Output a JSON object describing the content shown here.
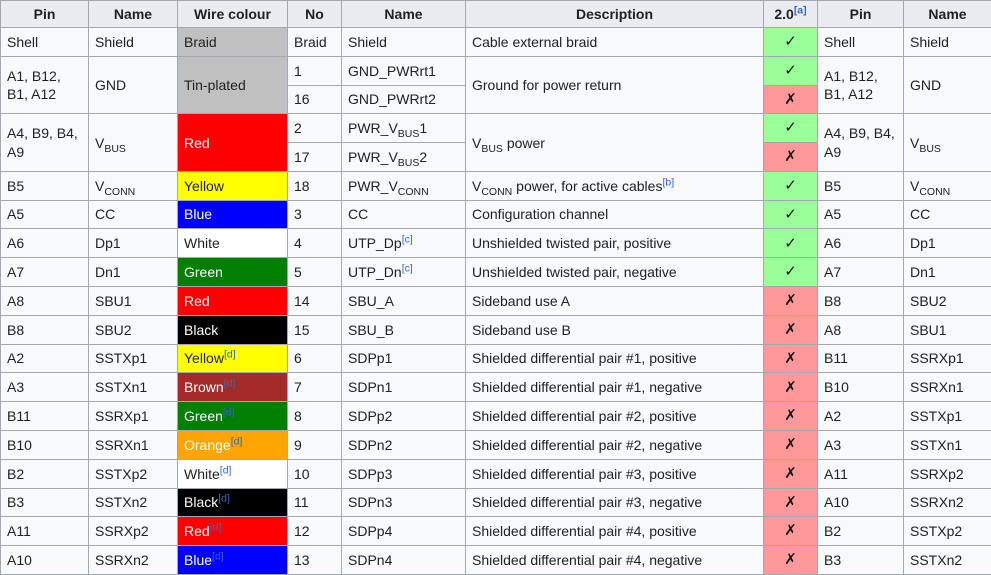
{
  "table": {
    "columns": [
      {
        "label": "Pin"
      },
      {
        "label": "Name"
      },
      {
        "label": "Wire colour"
      },
      {
        "label": "No"
      },
      {
        "label": "Name"
      },
      {
        "label": "Description"
      },
      {
        "label": "2.0",
        "sup": "[a]"
      },
      {
        "label": "Pin"
      },
      {
        "label": "Name"
      }
    ],
    "glyphs": {
      "yes": "✓",
      "no": "✗"
    },
    "colors": {
      "yes_bg": "#99ff99",
      "no_bg": "#ff9999",
      "silver": "#c0c0c0",
      "red": "#ff0000",
      "yellow": "#ffff00",
      "blue": "#0000ff",
      "white": "#ffffff",
      "green": "#008000",
      "black": "#000000",
      "brown": "#a52a2a",
      "orange": "#ffa500",
      "link": "#3366cc",
      "header_bg": "#eaecf0",
      "cell_bg": "#f8f9fa",
      "border": "#a2a9b1"
    },
    "rows": [
      {
        "cells": [
          {
            "kind": "pin",
            "text": "Shell"
          },
          {
            "kind": "name",
            "text": "Shield"
          },
          {
            "kind": "wire",
            "text": "Braid",
            "bg": "silver"
          },
          {
            "kind": "no",
            "text": "Braid"
          },
          {
            "kind": "signal",
            "text": "Shield"
          },
          {
            "kind": "desc",
            "text": "Cable external braid"
          },
          {
            "kind": "usb2",
            "mark": "yes"
          },
          {
            "kind": "pin2",
            "text": "Shell"
          },
          {
            "kind": "name2",
            "text": "Shield"
          }
        ]
      },
      {
        "cells": [
          {
            "kind": "pin",
            "text": "A1, B12, B1, A12",
            "rowspan": 2
          },
          {
            "kind": "name",
            "text": "GND",
            "rowspan": 2
          },
          {
            "kind": "wire",
            "text": "Tin-plated",
            "bg": "silver",
            "rowspan": 2
          },
          {
            "kind": "no",
            "text": "1"
          },
          {
            "kind": "signal",
            "text": "GND_PWRrt1"
          },
          {
            "kind": "desc",
            "text": "Ground for power return",
            "rowspan": 2
          },
          {
            "kind": "usb2",
            "mark": "yes"
          },
          {
            "kind": "pin2",
            "text": "A1, B12, B1, A12",
            "rowspan": 2
          },
          {
            "kind": "name2",
            "text": "GND",
            "rowspan": 2
          }
        ]
      },
      {
        "cells": [
          {
            "kind": "no",
            "text": "16"
          },
          {
            "kind": "signal",
            "text": "GND_PWRrt2"
          },
          {
            "kind": "usb2",
            "mark": "no"
          }
        ]
      },
      {
        "cells": [
          {
            "kind": "pin",
            "text": "A4, B9, B4, A9",
            "rowspan": 2
          },
          {
            "kind": "name",
            "parts": [
              {
                "t": "V"
              },
              {
                "sub": "BUS"
              }
            ],
            "rowspan": 2
          },
          {
            "kind": "wire",
            "text": "Red",
            "bg": "red",
            "fg": "#ffffff",
            "rowspan": 2
          },
          {
            "kind": "no",
            "text": "2"
          },
          {
            "kind": "signal",
            "parts": [
              {
                "t": "PWR_V"
              },
              {
                "sub": "BUS"
              },
              {
                "t": "1"
              }
            ]
          },
          {
            "kind": "desc",
            "parts": [
              {
                "t": "V"
              },
              {
                "sub": "BUS"
              },
              {
                "t": " power"
              }
            ],
            "rowspan": 2
          },
          {
            "kind": "usb2",
            "mark": "yes"
          },
          {
            "kind": "pin2",
            "text": "A4, B9, B4, A9",
            "rowspan": 2
          },
          {
            "kind": "name2",
            "parts": [
              {
                "t": "V"
              },
              {
                "sub": "BUS"
              }
            ],
            "rowspan": 2
          }
        ]
      },
      {
        "cells": [
          {
            "kind": "no",
            "text": "17"
          },
          {
            "kind": "signal",
            "parts": [
              {
                "t": "PWR_V"
              },
              {
                "sub": "BUS"
              },
              {
                "t": "2"
              }
            ]
          },
          {
            "kind": "usb2",
            "mark": "no"
          }
        ]
      },
      {
        "cells": [
          {
            "kind": "pin",
            "text": "B5"
          },
          {
            "kind": "name",
            "parts": [
              {
                "t": "V"
              },
              {
                "sub": "CONN"
              }
            ]
          },
          {
            "kind": "wire",
            "text": "Yellow",
            "bg": "yellow"
          },
          {
            "kind": "no",
            "text": "18"
          },
          {
            "kind": "signal",
            "parts": [
              {
                "t": "PWR_V"
              },
              {
                "sub": "CONN"
              }
            ]
          },
          {
            "kind": "desc",
            "parts": [
              {
                "t": "V"
              },
              {
                "sub": "CONN"
              },
              {
                "t": " power, for active cables"
              }
            ],
            "sup": "[b]"
          },
          {
            "kind": "usb2",
            "mark": "yes"
          },
          {
            "kind": "pin2",
            "text": "B5"
          },
          {
            "kind": "name2",
            "parts": [
              {
                "t": "V"
              },
              {
                "sub": "CONN"
              }
            ]
          }
        ]
      },
      {
        "cells": [
          {
            "kind": "pin",
            "text": "A5"
          },
          {
            "kind": "name",
            "text": "CC"
          },
          {
            "kind": "wire",
            "text": "Blue",
            "bg": "blue",
            "fg": "#ffffff"
          },
          {
            "kind": "no",
            "text": "3"
          },
          {
            "kind": "signal",
            "text": "CC"
          },
          {
            "kind": "desc",
            "text": "Configuration channel"
          },
          {
            "kind": "usb2",
            "mark": "yes"
          },
          {
            "kind": "pin2",
            "text": "A5"
          },
          {
            "kind": "name2",
            "text": "CC"
          }
        ]
      },
      {
        "cells": [
          {
            "kind": "pin",
            "text": "A6"
          },
          {
            "kind": "name",
            "text": "Dp1"
          },
          {
            "kind": "wire",
            "text": "White",
            "bg": "white"
          },
          {
            "kind": "no",
            "text": "4"
          },
          {
            "kind": "signal",
            "text": "UTP_Dp",
            "sup": "[c]"
          },
          {
            "kind": "desc",
            "text": "Unshielded twisted pair, positive"
          },
          {
            "kind": "usb2",
            "mark": "yes"
          },
          {
            "kind": "pin2",
            "text": "A6"
          },
          {
            "kind": "name2",
            "text": "Dp1"
          }
        ]
      },
      {
        "cells": [
          {
            "kind": "pin",
            "text": "A7"
          },
          {
            "kind": "name",
            "text": "Dn1"
          },
          {
            "kind": "wire",
            "text": "Green",
            "bg": "green",
            "fg": "#ffffff"
          },
          {
            "kind": "no",
            "text": "5"
          },
          {
            "kind": "signal",
            "text": "UTP_Dn",
            "sup": "[c]"
          },
          {
            "kind": "desc",
            "text": "Unshielded twisted pair, negative"
          },
          {
            "kind": "usb2",
            "mark": "yes"
          },
          {
            "kind": "pin2",
            "text": "A7"
          },
          {
            "kind": "name2",
            "text": "Dn1"
          }
        ]
      },
      {
        "cells": [
          {
            "kind": "pin",
            "text": "A8"
          },
          {
            "kind": "name",
            "text": "SBU1"
          },
          {
            "kind": "wire",
            "text": "Red",
            "bg": "red",
            "fg": "#ffffff"
          },
          {
            "kind": "no",
            "text": "14"
          },
          {
            "kind": "signal",
            "text": "SBU_A"
          },
          {
            "kind": "desc",
            "text": "Sideband use A"
          },
          {
            "kind": "usb2",
            "mark": "no"
          },
          {
            "kind": "pin2",
            "text": "B8"
          },
          {
            "kind": "name2",
            "text": "SBU2"
          }
        ]
      },
      {
        "cells": [
          {
            "kind": "pin",
            "text": "B8"
          },
          {
            "kind": "name",
            "text": "SBU2"
          },
          {
            "kind": "wire",
            "text": "Black",
            "bg": "black",
            "fg": "#ffffff"
          },
          {
            "kind": "no",
            "text": "15"
          },
          {
            "kind": "signal",
            "text": "SBU_B"
          },
          {
            "kind": "desc",
            "text": "Sideband use B"
          },
          {
            "kind": "usb2",
            "mark": "no"
          },
          {
            "kind": "pin2",
            "text": "A8"
          },
          {
            "kind": "name2",
            "text": "SBU1"
          }
        ]
      },
      {
        "cells": [
          {
            "kind": "pin",
            "text": "A2"
          },
          {
            "kind": "name",
            "text": "SSTXp1"
          },
          {
            "kind": "wire",
            "text": "Yellow",
            "bg": "yellow",
            "sup": "[d]"
          },
          {
            "kind": "no",
            "text": "6"
          },
          {
            "kind": "signal",
            "text": "SDPp1"
          },
          {
            "kind": "desc",
            "text": "Shielded differential pair #1, positive"
          },
          {
            "kind": "usb2",
            "mark": "no"
          },
          {
            "kind": "pin2",
            "text": "B11"
          },
          {
            "kind": "name2",
            "text": "SSRXp1"
          }
        ]
      },
      {
        "cells": [
          {
            "kind": "pin",
            "text": "A3"
          },
          {
            "kind": "name",
            "text": "SSTXn1"
          },
          {
            "kind": "wire",
            "text": "Brown",
            "bg": "brown",
            "fg": "#ffffff",
            "sup": "[d]"
          },
          {
            "kind": "no",
            "text": "7"
          },
          {
            "kind": "signal",
            "text": "SDPn1"
          },
          {
            "kind": "desc",
            "text": "Shielded differential pair #1, negative"
          },
          {
            "kind": "usb2",
            "mark": "no"
          },
          {
            "kind": "pin2",
            "text": "B10"
          },
          {
            "kind": "name2",
            "text": "SSRXn1"
          }
        ]
      },
      {
        "cells": [
          {
            "kind": "pin",
            "text": "B11"
          },
          {
            "kind": "name",
            "text": "SSRXp1"
          },
          {
            "kind": "wire",
            "text": "Green",
            "bg": "green",
            "fg": "#ffffff",
            "sup": "[d]"
          },
          {
            "kind": "no",
            "text": "8"
          },
          {
            "kind": "signal",
            "text": "SDPp2"
          },
          {
            "kind": "desc",
            "text": "Shielded differential pair #2, positive"
          },
          {
            "kind": "usb2",
            "mark": "no"
          },
          {
            "kind": "pin2",
            "text": "A2"
          },
          {
            "kind": "name2",
            "text": "SSTXp1"
          }
        ]
      },
      {
        "cells": [
          {
            "kind": "pin",
            "text": "B10"
          },
          {
            "kind": "name",
            "text": "SSRXn1"
          },
          {
            "kind": "wire",
            "text": "Orange",
            "bg": "orange",
            "fg": "#ffffff",
            "sup": "[d]"
          },
          {
            "kind": "no",
            "text": "9"
          },
          {
            "kind": "signal",
            "text": "SDPn2"
          },
          {
            "kind": "desc",
            "text": "Shielded differential pair #2, negative"
          },
          {
            "kind": "usb2",
            "mark": "no"
          },
          {
            "kind": "pin2",
            "text": "A3"
          },
          {
            "kind": "name2",
            "text": "SSTXn1"
          }
        ]
      },
      {
        "cells": [
          {
            "kind": "pin",
            "text": "B2"
          },
          {
            "kind": "name",
            "text": "SSTXp2"
          },
          {
            "kind": "wire",
            "text": "White",
            "bg": "white",
            "sup": "[d]"
          },
          {
            "kind": "no",
            "text": "10"
          },
          {
            "kind": "signal",
            "text": "SDPp3"
          },
          {
            "kind": "desc",
            "text": "Shielded differential pair #3, positive"
          },
          {
            "kind": "usb2",
            "mark": "no"
          },
          {
            "kind": "pin2",
            "text": "A11"
          },
          {
            "kind": "name2",
            "text": "SSRXp2"
          }
        ]
      },
      {
        "cells": [
          {
            "kind": "pin",
            "text": "B3"
          },
          {
            "kind": "name",
            "text": "SSTXn2"
          },
          {
            "kind": "wire",
            "text": "Black",
            "bg": "black",
            "fg": "#ffffff",
            "sup": "[d]"
          },
          {
            "kind": "no",
            "text": "11"
          },
          {
            "kind": "signal",
            "text": "SDPn3"
          },
          {
            "kind": "desc",
            "text": "Shielded differential pair #3, negative"
          },
          {
            "kind": "usb2",
            "mark": "no"
          },
          {
            "kind": "pin2",
            "text": "A10"
          },
          {
            "kind": "name2",
            "text": "SSRXn2"
          }
        ]
      },
      {
        "cells": [
          {
            "kind": "pin",
            "text": "A11"
          },
          {
            "kind": "name",
            "text": "SSRXp2"
          },
          {
            "kind": "wire",
            "text": "Red",
            "bg": "red",
            "fg": "#ffffff",
            "sup": "[d]"
          },
          {
            "kind": "no",
            "text": "12"
          },
          {
            "kind": "signal",
            "text": "SDPp4"
          },
          {
            "kind": "desc",
            "text": "Shielded differential pair #4, positive"
          },
          {
            "kind": "usb2",
            "mark": "no"
          },
          {
            "kind": "pin2",
            "text": "B2"
          },
          {
            "kind": "name2",
            "text": "SSTXp2"
          }
        ]
      },
      {
        "cells": [
          {
            "kind": "pin",
            "text": "A10"
          },
          {
            "kind": "name",
            "text": "SSRXn2"
          },
          {
            "kind": "wire",
            "text": "Blue",
            "bg": "blue",
            "fg": "#ffffff",
            "sup": "[d]"
          },
          {
            "kind": "no",
            "text": "13"
          },
          {
            "kind": "signal",
            "text": "SDPn4"
          },
          {
            "kind": "desc",
            "text": "Shielded differential pair #4, negative"
          },
          {
            "kind": "usb2",
            "mark": "no"
          },
          {
            "kind": "pin2",
            "text": "B3"
          },
          {
            "kind": "name2",
            "text": "SSTXn2"
          }
        ]
      }
    ]
  }
}
